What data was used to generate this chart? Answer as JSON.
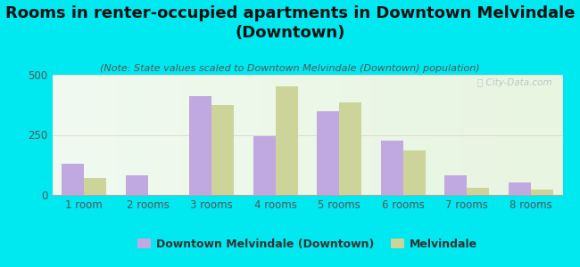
{
  "title": "Rooms in renter-occupied apartments in Downtown Melvindale\n(Downtown)",
  "subtitle": "(Note: State values scaled to Downtown Melvindale (Downtown) population)",
  "categories": [
    "1 room",
    "2 rooms",
    "3 rooms",
    "4 rooms",
    "5 rooms",
    "6 rooms",
    "7 rooms",
    "8 rooms"
  ],
  "downtown_values": [
    130,
    80,
    410,
    245,
    350,
    225,
    80,
    52
  ],
  "melvindale_values": [
    70,
    0,
    375,
    450,
    385,
    185,
    30,
    22
  ],
  "downtown_color": "#c0a8e0",
  "melvindale_color": "#cdd49a",
  "background_color": "#00e8f0",
  "ylim": [
    0,
    500
  ],
  "yticks": [
    0,
    250,
    500
  ],
  "bar_width": 0.35,
  "title_fontsize": 13,
  "subtitle_fontsize": 8,
  "axis_label_fontsize": 8.5,
  "legend_label1": "Downtown Melvindale (Downtown)",
  "legend_label2": "Melvindale",
  "watermark": "ⓘ City-Data.com",
  "tick_color": "#555555",
  "title_color": "#111111"
}
